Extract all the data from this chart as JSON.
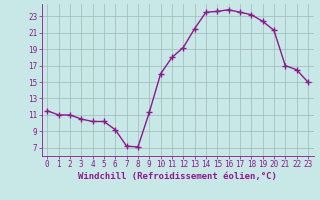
{
  "x": [
    0,
    1,
    2,
    3,
    4,
    5,
    6,
    7,
    8,
    9,
    10,
    11,
    12,
    13,
    14,
    15,
    16,
    17,
    18,
    19,
    20,
    21,
    22,
    23
  ],
  "y": [
    11.5,
    11.0,
    11.0,
    10.5,
    10.2,
    10.2,
    9.2,
    7.2,
    7.1,
    11.3,
    16.0,
    18.0,
    19.2,
    21.5,
    23.5,
    23.6,
    23.8,
    23.5,
    23.2,
    22.4,
    21.3,
    17.0,
    16.5,
    15.0
  ],
  "line_color": "#8b1a8b",
  "marker": "+",
  "marker_size": 4,
  "xlabel": "Windchill (Refroidissement éolien,°C)",
  "xlim": [
    -0.5,
    23.5
  ],
  "ylim": [
    6.0,
    24.5
  ],
  "yticks": [
    7,
    9,
    11,
    13,
    15,
    17,
    19,
    21,
    23
  ],
  "xticks": [
    0,
    1,
    2,
    3,
    4,
    5,
    6,
    7,
    8,
    9,
    10,
    11,
    12,
    13,
    14,
    15,
    16,
    17,
    18,
    19,
    20,
    21,
    22,
    23
  ],
  "bg_color": "#c8e8e8",
  "grid_color": "#a0b8b8",
  "font_color": "#8b1a8b",
  "tick_fontsize": 5.5,
  "xlabel_fontsize": 6.5,
  "line_width": 1.0,
  "marker_edge_width": 1.0
}
